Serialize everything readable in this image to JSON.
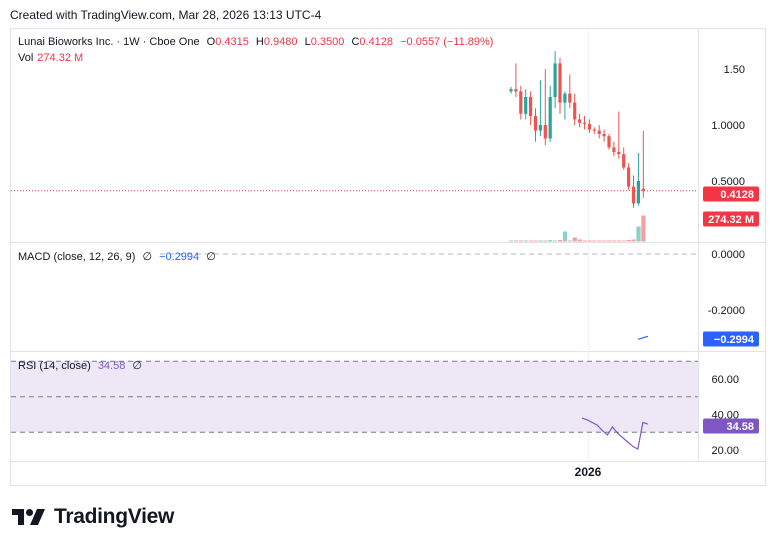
{
  "header": {
    "created_text": "Created with TradingView.com, Mar 28, 2026 13:13 UTC-4"
  },
  "legend": {
    "symbol": "Lunai Bioworks Inc. · 1W · Cboe One",
    "o_label": "O",
    "o_value": "0.4315",
    "h_label": "H",
    "h_value": "0.9480",
    "l_label": "L",
    "l_value": "0.3500",
    "c_label": "C",
    "c_value": "0.4128",
    "change": "−0.0557 (−11.89%)",
    "vol_label": "Vol",
    "vol_value": "274.32 M"
  },
  "macd_legend": {
    "name": "MACD (close, 12, 26, 9)",
    "empty1": "∅",
    "value": "−0.2994",
    "empty2": "∅"
  },
  "rsi_legend": {
    "name": "RSI (14, close)",
    "value": "34.58",
    "empty": "∅"
  },
  "logo": {
    "text": "TradingView"
  },
  "colors": {
    "up": "#26a69a",
    "down": "#ef5350",
    "up_vol": "#8fcfc8",
    "down_vol": "#f4a0a0",
    "price_label": "#f23645",
    "macd_label": "#2962ff",
    "rsi_label": "#7e57c2",
    "rsi_band": "#ede7f6"
  },
  "chart_data": [
    {
      "type": "candlestick",
      "title": "Lunai Bioworks Inc. · 1W · Cboe One",
      "y_ticks": [
        "1.50",
        "1.0000",
        "0.5000"
      ],
      "y_tick_values": [
        1.5,
        1.0,
        0.5
      ],
      "last_price_label": "0.4128",
      "last_price": 0.4128,
      "volume_label": "274.32 M",
      "x_tick_label": "2026",
      "candles": [
        {
          "o": 1.3,
          "h": 1.34,
          "l": 1.28,
          "c": 1.32
        },
        {
          "o": 1.32,
          "h": 1.55,
          "l": 1.25,
          "c": 1.3
        },
        {
          "o": 1.3,
          "h": 1.35,
          "l": 1.05,
          "c": 1.1
        },
        {
          "o": 1.1,
          "h": 1.32,
          "l": 1.05,
          "c": 1.25
        },
        {
          "o": 1.25,
          "h": 1.3,
          "l": 1.0,
          "c": 1.08
        },
        {
          "o": 1.08,
          "h": 1.15,
          "l": 0.85,
          "c": 0.95
        },
        {
          "o": 0.95,
          "h": 1.4,
          "l": 0.9,
          "c": 1.0
        },
        {
          "o": 1.0,
          "h": 1.5,
          "l": 0.82,
          "c": 0.88
        },
        {
          "o": 0.88,
          "h": 1.35,
          "l": 0.85,
          "c": 1.25
        },
        {
          "o": 1.25,
          "h": 1.66,
          "l": 1.15,
          "c": 1.55
        },
        {
          "o": 1.55,
          "h": 1.6,
          "l": 1.1,
          "c": 1.2
        },
        {
          "o": 1.2,
          "h": 1.3,
          "l": 1.05,
          "c": 1.28
        },
        {
          "o": 1.28,
          "h": 1.45,
          "l": 1.15,
          "c": 1.2
        },
        {
          "o": 1.2,
          "h": 1.28,
          "l": 1.0,
          "c": 1.05
        },
        {
          "o": 1.05,
          "h": 1.1,
          "l": 0.98,
          "c": 1.02
        },
        {
          "o": 1.02,
          "h": 1.08,
          "l": 0.96,
          "c": 1.01
        },
        {
          "o": 1.01,
          "h": 1.05,
          "l": 0.93,
          "c": 0.96
        },
        {
          "o": 0.96,
          "h": 0.98,
          "l": 0.92,
          "c": 0.95
        },
        {
          "o": 0.95,
          "h": 1.0,
          "l": 0.88,
          "c": 0.92
        },
        {
          "o": 0.92,
          "h": 0.96,
          "l": 0.85,
          "c": 0.9
        },
        {
          "o": 0.9,
          "h": 0.92,
          "l": 0.78,
          "c": 0.8
        },
        {
          "o": 0.8,
          "h": 0.85,
          "l": 0.72,
          "c": 0.76
        },
        {
          "o": 0.76,
          "h": 1.12,
          "l": 0.7,
          "c": 0.74
        },
        {
          "o": 0.74,
          "h": 0.8,
          "l": 0.6,
          "c": 0.62
        },
        {
          "o": 0.62,
          "h": 0.66,
          "l": 0.42,
          "c": 0.45
        },
        {
          "o": 0.45,
          "h": 0.55,
          "l": 0.26,
          "c": 0.3
        },
        {
          "o": 0.3,
          "h": 0.75,
          "l": 0.28,
          "c": 0.5
        },
        {
          "o": 0.4315,
          "h": 0.948,
          "l": 0.35,
          "c": 0.4128
        }
      ],
      "volume": [
        2,
        2,
        2,
        2,
        2,
        2,
        2,
        2,
        3,
        2,
        3,
        20,
        2,
        8,
        4,
        2,
        2,
        2,
        2,
        2,
        2,
        2,
        2,
        2,
        3,
        4,
        30,
        52
      ]
    },
    {
      "type": "line",
      "title": "MACD (close, 12, 26, 9)",
      "y_ticks": [
        "0.0000",
        "-0.2000"
      ],
      "y_tick_values": [
        0.0,
        -0.2
      ],
      "last_value_label": "−0.2994",
      "values": [
        -0.2994,
        -0.2994
      ]
    },
    {
      "type": "line",
      "title": "RSI (14, close)",
      "y_ticks": [
        "60.00",
        "40.00",
        "20.00"
      ],
      "y_tick_values": [
        60,
        40,
        20
      ],
      "bands": [
        70,
        50,
        30
      ],
      "last_value_label": "34.58",
      "values": [
        38.0,
        37.0,
        35.5,
        34.0,
        31.0,
        28.5,
        33.0,
        29.5,
        27.0,
        24.5,
        22.0,
        20.5,
        35.5,
        34.58
      ]
    }
  ]
}
